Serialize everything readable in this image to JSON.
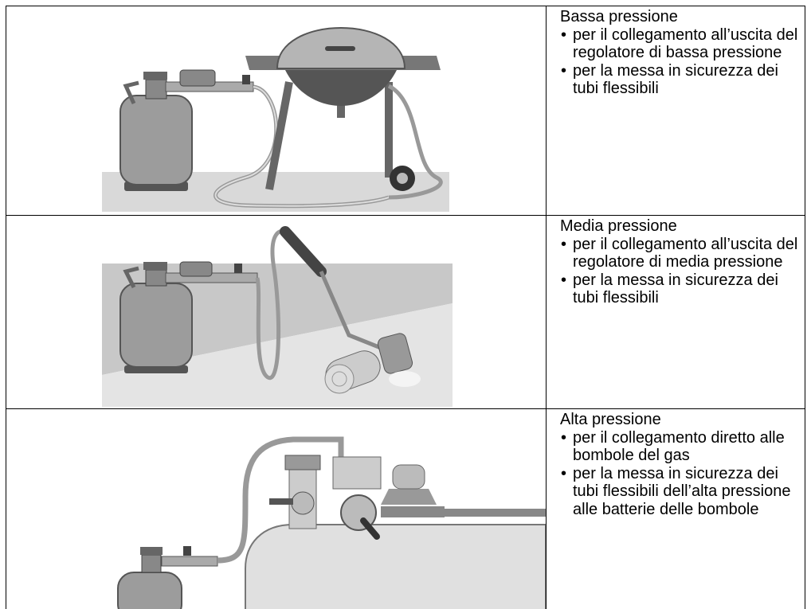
{
  "rows": [
    {
      "title": "Bassa pressione",
      "bullets": [
        "per il collegamento all’uscita del regolatore di bassa pressione",
        "per la messa in sicurezza dei tubi flessibili"
      ]
    },
    {
      "title": "Media pressione",
      "bullets": [
        "per il collegamento all’uscita del regolatore di media pressione",
        "per la messa in sicurezza dei tubi flessibili"
      ]
    },
    {
      "title": "Alta pressione",
      "bullets": [
        "per il collegamento diretto alle bombole del gas",
        "per la messa in sicurezza dei tubi flessibili dell’alta pressione alle batterie delle bombole"
      ]
    }
  ]
}
